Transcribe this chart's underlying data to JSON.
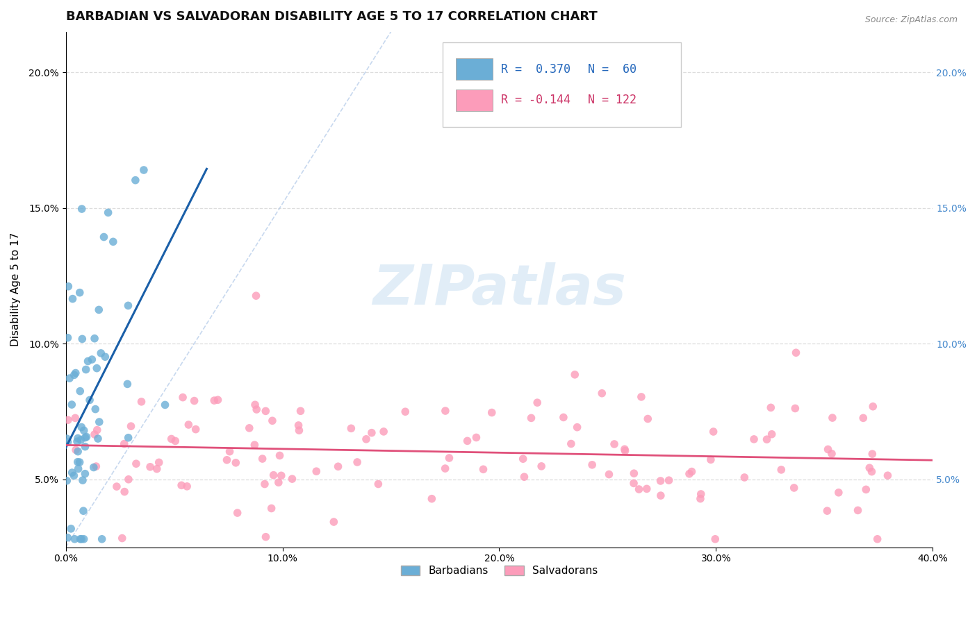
{
  "title": "BARBADIAN VS SALVADORAN DISABILITY AGE 5 TO 17 CORRELATION CHART",
  "source_text": "Source: ZipAtlas.com",
  "ylabel": "Disability Age 5 to 17",
  "xlim": [
    0.0,
    0.4
  ],
  "ylim": [
    0.025,
    0.215
  ],
  "xtick_labels": [
    "0.0%",
    "10.0%",
    "20.0%",
    "30.0%",
    "40.0%"
  ],
  "xtick_vals": [
    0.0,
    0.1,
    0.2,
    0.3,
    0.4
  ],
  "ytick_labels_left": [
    "5.0%",
    "10.0%",
    "15.0%",
    "20.0%"
  ],
  "ytick_labels_right": [
    "5.0%",
    "10.0%",
    "15.0%",
    "20.0%"
  ],
  "ytick_vals": [
    0.05,
    0.1,
    0.15,
    0.2
  ],
  "barbadian_color": "#6baed6",
  "salvadoran_color": "#fc9cba",
  "barbadian_line_color": "#1a5fa8",
  "salvadoran_line_color": "#e0507a",
  "right_tick_color": "#4488cc",
  "legend_R_blue": "R =  0.370",
  "legend_N_blue": "N =  60",
  "legend_R_pink": "R = -0.144",
  "legend_N_pink": "N = 122",
  "legend_text_blue": "R =  0.370   N =  60",
  "legend_text_pink": "R = -0.144   N = 122",
  "watermark": "ZIPatlas",
  "background_color": "#ffffff",
  "grid_color": "#dddddd",
  "title_fontsize": 13,
  "axis_label_fontsize": 11,
  "tick_fontsize": 10,
  "legend_fontsize": 12
}
